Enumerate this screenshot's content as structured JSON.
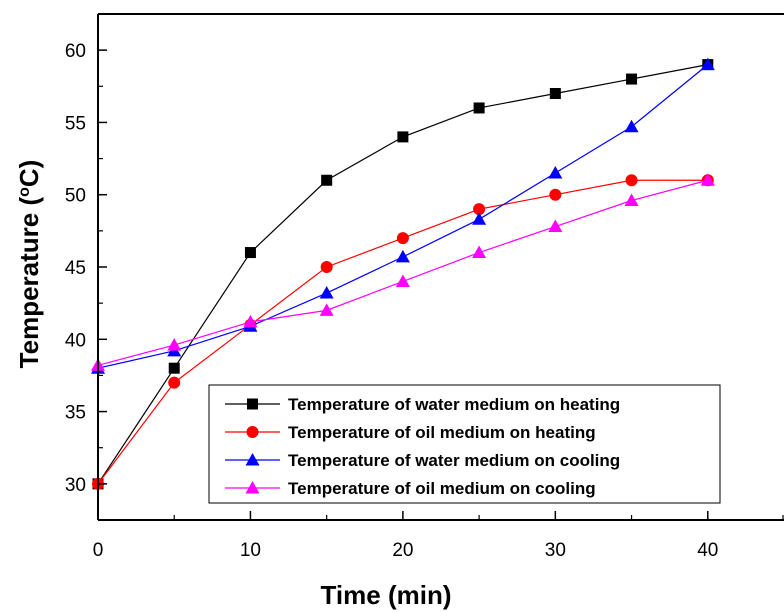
{
  "chart_data": {
    "type": "line",
    "title": "",
    "xlabel": "Time (min)",
    "ylabel_main": "Temperature (",
    "ylabel_degree": "o",
    "ylabel_tail": "C)",
    "xlim": [
      0,
      45
    ],
    "ylim": [
      27.5,
      62.5
    ],
    "xticks": [
      0,
      10,
      20,
      30,
      40
    ],
    "xticks_minor": [
      5,
      15,
      25,
      35,
      45
    ],
    "yticks": [
      30,
      35,
      40,
      45,
      50,
      55,
      60
    ],
    "grid": false,
    "legend_position": "bottom-right",
    "x": [
      0,
      5,
      10,
      15,
      20,
      25,
      30,
      35,
      40
    ],
    "series": [
      {
        "name": "Temperature of water medium on heating",
        "color": "#000000",
        "marker": "square",
        "values": [
          30,
          38,
          46,
          51,
          54,
          56,
          57,
          58,
          59
        ]
      },
      {
        "name": "Temperature of oil medium on heating",
        "color": "#ff0000",
        "marker": "circle",
        "values": [
          30,
          37,
          41,
          45,
          47,
          49,
          50,
          51,
          51
        ]
      },
      {
        "name": "Temperature of water medium on cooling",
        "color": "#0000ff",
        "marker": "triangle",
        "values": [
          38,
          39.2,
          40.9,
          43.2,
          45.7,
          48.3,
          51.5,
          54.7,
          59
        ]
      },
      {
        "name": "Temperature of oil medium on cooling",
        "color": "#ff00ff",
        "marker": "triangle",
        "values": [
          38.2,
          39.6,
          41.2,
          42,
          44,
          46,
          47.8,
          49.6,
          51
        ]
      }
    ]
  }
}
